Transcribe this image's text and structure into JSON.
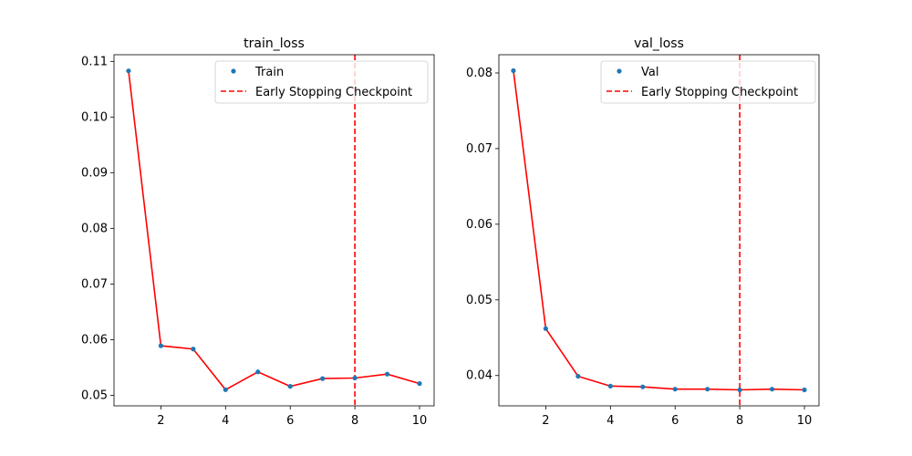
{
  "chart_data": [
    {
      "type": "line",
      "title": "train_loss",
      "xlabel": "",
      "ylabel": "",
      "x": [
        1,
        2,
        3,
        4,
        5,
        6,
        7,
        8,
        9,
        10
      ],
      "series": [
        {
          "name": "Train",
          "values": [
            0.1083,
            0.0589,
            0.0583,
            0.051,
            0.0542,
            0.0516,
            0.053,
            0.0531,
            0.0538,
            0.0521
          ],
          "marker_color": "#1f77b4",
          "line_color": "#ff0000"
        }
      ],
      "checkpoint": {
        "label": "Early Stopping Checkpoint",
        "x": 8,
        "color": "#ff0000"
      },
      "xlim": [
        0.55,
        10.45
      ],
      "ylim": [
        0.0481,
        0.1112
      ],
      "xticks": [
        2,
        4,
        6,
        8,
        10
      ],
      "xtick_labels": [
        "2",
        "4",
        "6",
        "8",
        "10"
      ],
      "yticks": [
        0.05,
        0.06,
        0.07,
        0.08,
        0.09,
        0.1,
        0.11
      ],
      "ytick_labels": [
        "0.05",
        "0.06",
        "0.07",
        "0.08",
        "0.09",
        "0.10",
        "0.11"
      ],
      "legend_position": "top-right",
      "grid": false
    },
    {
      "type": "line",
      "title": "val_loss",
      "xlabel": "",
      "ylabel": "",
      "x": [
        1,
        2,
        3,
        4,
        5,
        6,
        7,
        8,
        9,
        10
      ],
      "series": [
        {
          "name": "Val",
          "values": [
            0.0803,
            0.0462,
            0.0399,
            0.0386,
            0.0385,
            0.0382,
            0.0382,
            0.0381,
            0.0382,
            0.0381
          ],
          "marker_color": "#1f77b4",
          "line_color": "#ff0000"
        }
      ],
      "checkpoint": {
        "label": "Early Stopping Checkpoint",
        "x": 8,
        "color": "#ff0000"
      },
      "xlim": [
        0.55,
        10.45
      ],
      "ylim": [
        0.03599,
        0.08241
      ],
      "xticks": [
        2,
        4,
        6,
        8,
        10
      ],
      "xtick_labels": [
        "2",
        "4",
        "6",
        "8",
        "10"
      ],
      "yticks": [
        0.04,
        0.05,
        0.06,
        0.07,
        0.08
      ],
      "ytick_labels": [
        "0.04",
        "0.05",
        "0.06",
        "0.07",
        "0.08"
      ],
      "legend_position": "top-right",
      "grid": false
    }
  ]
}
